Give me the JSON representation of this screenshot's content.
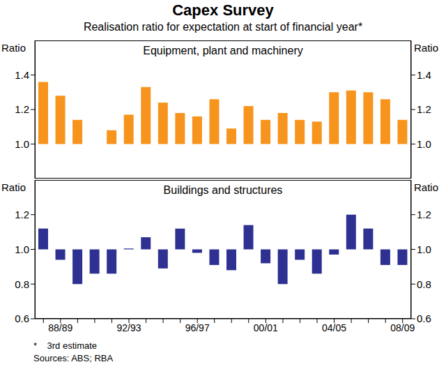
{
  "title": "Capex Survey",
  "subtitle": "Realisation ratio for expectation at start of financial year*",
  "footnote": "*    3rd estimate",
  "sources": "Sources: ABS; RBA",
  "chart_data": [
    {
      "type": "bar",
      "title": "Equipment, plant and machinery",
      "y_label": "Ratio",
      "categories": [
        null,
        "88/89",
        null,
        null,
        null,
        "92/93",
        null,
        null,
        null,
        "96/97",
        null,
        null,
        null,
        "00/01",
        null,
        null,
        null,
        "04/05",
        null,
        null,
        null,
        "08/09"
      ],
      "values": [
        1.36,
        1.28,
        1.14,
        null,
        1.08,
        1.17,
        1.33,
        1.24,
        1.18,
        1.16,
        1.26,
        1.09,
        1.22,
        1.14,
        1.18,
        1.14,
        1.13,
        1.3,
        1.31,
        1.3,
        1.26,
        1.14
      ],
      "color": "#f7941d",
      "ylim": [
        0.8,
        1.6
      ],
      "yticks": [
        {
          "value": 1,
          "label": "1.0"
        },
        1.2,
        1.4
      ],
      "grid": false,
      "tick_labels": "y"
    },
    {
      "type": "bar",
      "title": "Buildings and structures",
      "y_label": "Ratio",
      "categories": [
        null,
        "88/89",
        null,
        null,
        null,
        "92/93",
        null,
        null,
        null,
        "96/97",
        null,
        null,
        null,
        "00/01",
        null,
        null,
        null,
        "04/05",
        null,
        null,
        null,
        "08/09"
      ],
      "values": [
        1.12,
        0.94,
        0.8,
        0.86,
        0.86,
        1.005,
        1.07,
        0.89,
        1.12,
        0.98,
        0.91,
        0.88,
        1.14,
        0.92,
        0.8,
        0.94,
        0.86,
        0.97,
        1.2,
        1.12,
        0.91,
        0.91
      ],
      "color": "#2e3192",
      "ylim": [
        0.6,
        1.4
      ],
      "yticks": [
        0.6,
        0.8,
        {
          "value": 1,
          "label": "1.0"
        },
        1.2
      ],
      "grid": false
    }
  ]
}
